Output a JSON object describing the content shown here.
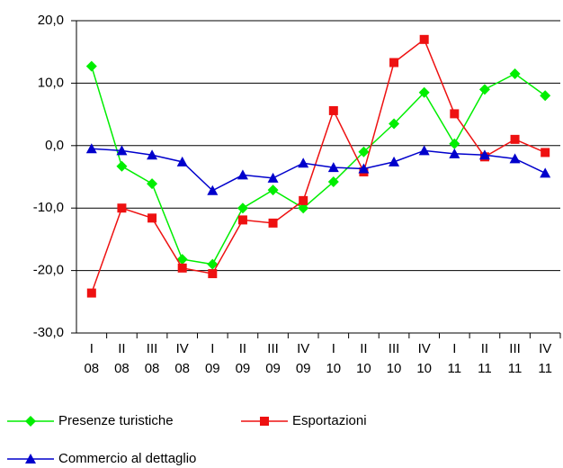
{
  "chart_data": {
    "type": "line",
    "categories": [
      "I\n08",
      "II\n08",
      "III\n08",
      "IV\n08",
      "I\n09",
      "II\n09",
      "III\n09",
      "IV\n09",
      "I\n10",
      "II\n10",
      "III\n10",
      "IV\n10",
      "I\n11",
      "II\n11",
      "III\n11",
      "IV\n11"
    ],
    "series": [
      {
        "name": "Presenze turistiche",
        "color": "#00ee00",
        "marker": "diamond",
        "values": [
          12.7,
          -3.3,
          -6.1,
          -18.2,
          -19.0,
          -10.0,
          -7.1,
          -10.0,
          -5.8,
          -1.0,
          3.5,
          8.5,
          0.3,
          9.0,
          11.5,
          8.0
        ]
      },
      {
        "name": "Esportazioni",
        "color": "#ee1111",
        "marker": "square",
        "values": [
          -23.6,
          -10.0,
          -11.6,
          -19.6,
          -20.5,
          -11.9,
          -12.4,
          -8.8,
          5.6,
          -4.2,
          13.3,
          17.0,
          5.1,
          -1.8,
          1.0,
          -1.1
        ]
      },
      {
        "name": "Commercio al dettaglio",
        "color": "#0000cc",
        "marker": "triangle",
        "values": [
          -0.5,
          -0.8,
          -1.5,
          -2.6,
          -7.2,
          -4.7,
          -5.2,
          -2.8,
          -3.5,
          -3.7,
          -2.6,
          -0.8,
          -1.3,
          -1.5,
          -2.1,
          -4.4
        ]
      }
    ],
    "ylim": [
      -30,
      20
    ],
    "yticks": [
      {
        "value": -30,
        "label": "-30,0"
      },
      {
        "value": -20,
        "label": "-20,0"
      },
      {
        "value": -10,
        "label": "-10,0"
      },
      {
        "value": 0,
        "label": "0,0"
      },
      {
        "value": 10,
        "label": "10,0"
      },
      {
        "value": 20,
        "label": "20,0"
      }
    ],
    "grid": true
  }
}
